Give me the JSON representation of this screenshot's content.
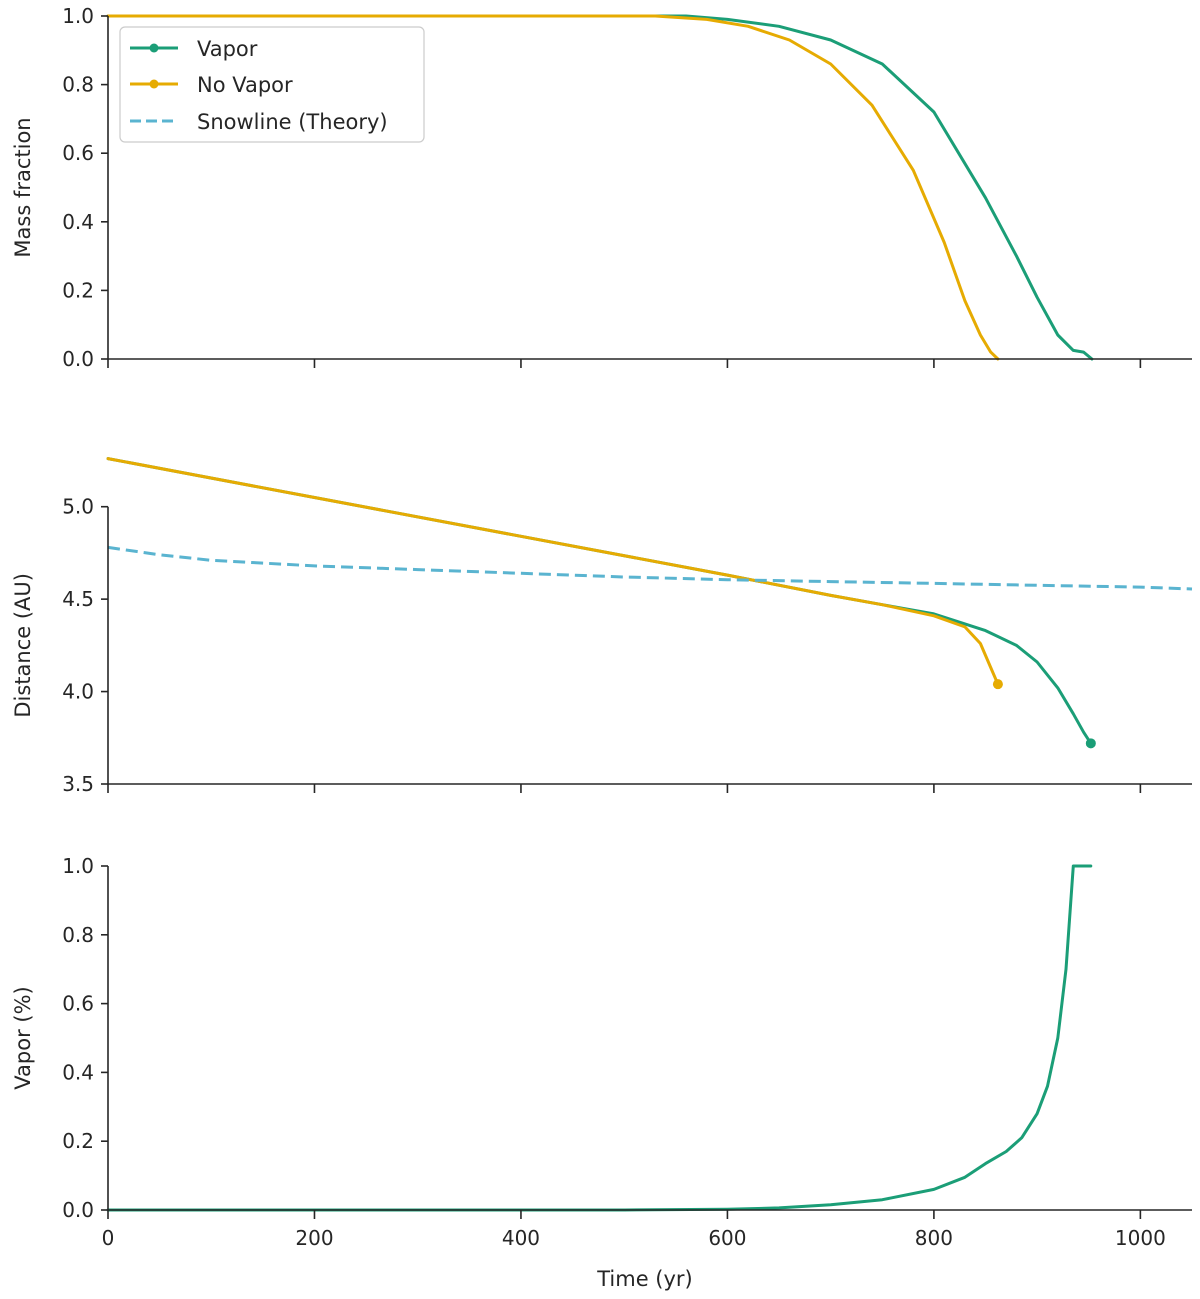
{
  "colors": {
    "vapor": "#1b9e77",
    "no_vapor": "#e6ab02",
    "snowline": "#5ab4d0",
    "axis": "#262626"
  },
  "legend": {
    "placement": "upper-left of top panel",
    "entries": [
      {
        "label": "Vapor",
        "style": "solid-marker",
        "color": "#1b9e77"
      },
      {
        "label": "No Vapor",
        "style": "solid-marker",
        "color": "#e6ab02"
      },
      {
        "label": "Snowline (Theory)",
        "style": "dashed",
        "color": "#5ab4d0"
      }
    ]
  },
  "chart_data": [
    {
      "type": "line",
      "panel": "top",
      "xlabel": "",
      "ylabel": "Mass fraction",
      "xlim": [
        0,
        1050
      ],
      "ylim": [
        0,
        1.0
      ],
      "xticks": [
        0,
        200,
        400,
        600,
        800,
        1000
      ],
      "xtick_labels_visible": false,
      "yticks": [
        0.0,
        0.2,
        0.4,
        0.6,
        0.8,
        1.0
      ],
      "ytick_labels": [
        "0.0",
        "0.2",
        "0.4",
        "0.6",
        "0.8",
        "1.0"
      ],
      "series": [
        {
          "name": "Vapor",
          "color": "#1b9e77",
          "dash": false,
          "x": [
            0,
            560,
            600,
            650,
            700,
            750,
            800,
            850,
            880,
            900,
            920,
            935,
            945,
            953
          ],
          "y": [
            1.0,
            1.0,
            0.99,
            0.97,
            0.93,
            0.86,
            0.72,
            0.47,
            0.3,
            0.18,
            0.07,
            0.025,
            0.02,
            0.0
          ]
        },
        {
          "name": "No Vapor",
          "color": "#e6ab02",
          "dash": false,
          "x": [
            0,
            530,
            580,
            620,
            660,
            700,
            740,
            780,
            810,
            830,
            845,
            855,
            862
          ],
          "y": [
            1.0,
            1.0,
            0.99,
            0.97,
            0.93,
            0.86,
            0.74,
            0.55,
            0.34,
            0.17,
            0.07,
            0.02,
            0.0
          ]
        }
      ]
    },
    {
      "type": "line",
      "panel": "middle",
      "xlabel": "",
      "ylabel": "Distance (AU)",
      "xlim": [
        0,
        1050
      ],
      "ylim": [
        3.5,
        5.35
      ],
      "xticks": [
        0,
        200,
        400,
        600,
        800,
        1000
      ],
      "xtick_labels_visible": false,
      "yticks": [
        3.5,
        4.0,
        4.5,
        5.0
      ],
      "ytick_labels": [
        "3.5",
        "4.0",
        "4.5",
        "5.0"
      ],
      "series": [
        {
          "name": "Vapor",
          "color": "#1b9e77",
          "dash": false,
          "end_marker": true,
          "x": [
            0,
            200,
            400,
            600,
            700,
            750,
            800,
            850,
            880,
            900,
            920,
            935,
            945,
            952
          ],
          "y": [
            5.26,
            5.05,
            4.84,
            4.63,
            4.52,
            4.47,
            4.42,
            4.33,
            4.25,
            4.16,
            4.02,
            3.88,
            3.78,
            3.72
          ]
        },
        {
          "name": "No Vapor",
          "color": "#e6ab02",
          "dash": false,
          "end_marker": true,
          "x": [
            0,
            200,
            400,
            600,
            700,
            750,
            800,
            830,
            845,
            855,
            862
          ],
          "y": [
            5.26,
            5.05,
            4.84,
            4.63,
            4.52,
            4.47,
            4.41,
            4.35,
            4.26,
            4.13,
            4.04
          ]
        },
        {
          "name": "Snowline (Theory)",
          "color": "#5ab4d0",
          "dash": true,
          "end_marker": false,
          "x": [
            0,
            50,
            100,
            200,
            300,
            400,
            500,
            600,
            700,
            800,
            900,
            1000,
            1050
          ],
          "y": [
            4.78,
            4.74,
            4.71,
            4.68,
            4.66,
            4.64,
            4.62,
            4.605,
            4.595,
            4.585,
            4.575,
            4.565,
            4.555
          ]
        }
      ]
    },
    {
      "type": "line",
      "panel": "bottom",
      "xlabel": "Time (yr)",
      "ylabel": "Vapor (%)",
      "xlim": [
        0,
        1050
      ],
      "ylim": [
        0,
        1.0
      ],
      "xticks": [
        0,
        200,
        400,
        600,
        800,
        1000
      ],
      "xtick_labels_visible": true,
      "xtick_labels": [
        "0",
        "200",
        "400",
        "600",
        "800",
        "1000"
      ],
      "yticks": [
        0.0,
        0.2,
        0.4,
        0.6,
        0.8,
        1.0
      ],
      "ytick_labels": [
        "0.0",
        "0.2",
        "0.4",
        "0.6",
        "0.8",
        "1.0"
      ],
      "series": [
        {
          "name": "Vapor",
          "color": "#1b9e77",
          "dash": false,
          "x": [
            0,
            500,
            600,
            650,
            700,
            750,
            800,
            830,
            850,
            870,
            885,
            900,
            910,
            920,
            928,
            935,
            952
          ],
          "y": [
            0.0,
            0.0,
            0.002,
            0.006,
            0.015,
            0.03,
            0.06,
            0.095,
            0.135,
            0.17,
            0.21,
            0.28,
            0.36,
            0.5,
            0.7,
            1.0,
            1.0
          ]
        }
      ]
    }
  ]
}
